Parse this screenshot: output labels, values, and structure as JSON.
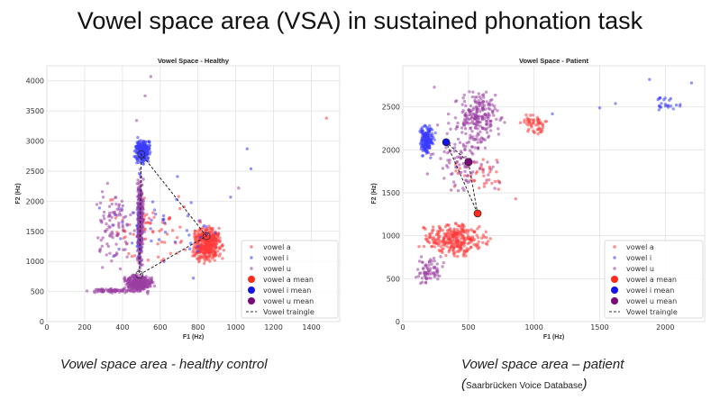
{
  "slide": {
    "title": "Vowel space area (VSA) in sustained phonation task",
    "caption_left": "Vowel space area - healthy control",
    "caption_right": "Vowel space area – patient",
    "caption_right_source": "Saarbrücken Voice Database"
  },
  "colors": {
    "a": "#ff3b3b",
    "i": "#3d3dff",
    "u": "#9b3ea3",
    "a_mean": "#ff2a1a",
    "i_mean": "#1414e6",
    "u_mean": "#7a0a7a"
  },
  "chart_data": [
    {
      "type": "scatter",
      "title": "Vowel Space - Healthy",
      "xlabel": "F1 (Hz)",
      "ylabel": "F2 (Hz)",
      "xlim": [
        0,
        1550
      ],
      "ylim": [
        0,
        4250
      ],
      "xticks": [
        0,
        200,
        400,
        600,
        800,
        1000,
        1200,
        1400
      ],
      "yticks": [
        0,
        500,
        1000,
        1500,
        2000,
        2500,
        3000,
        3500,
        4000
      ],
      "grid": true,
      "legend_position": "lower-right",
      "legend": [
        "vowel a",
        "vowel i",
        "vowel u",
        "vowel a mean",
        "vowel i mean",
        "vowel u mean",
        "Vowel traingle"
      ],
      "means": {
        "a": [
          845,
          1420
        ],
        "i": [
          500,
          2780
        ],
        "u": [
          490,
          780
        ]
      },
      "clusters": [
        {
          "series": "a",
          "n": 420,
          "f1": [
            750,
            950
          ],
          "f2": [
            900,
            1650
          ]
        },
        {
          "series": "a",
          "n": 70,
          "f1": [
            200,
            950
          ],
          "f2": [
            800,
            2300
          ]
        },
        {
          "series": "i",
          "n": 260,
          "f1": [
            450,
            560
          ],
          "f2": [
            2580,
            3100
          ]
        },
        {
          "series": "i",
          "n": 120,
          "f1": [
            470,
            510
          ],
          "f2": [
            700,
            2600
          ]
        },
        {
          "series": "i",
          "n": 45,
          "f1": [
            140,
            1080
          ],
          "f2": [
            480,
            2900
          ]
        },
        {
          "series": "u",
          "n": 260,
          "f1": [
            470,
            520
          ],
          "f2": [
            600,
            2700
          ]
        },
        {
          "series": "u",
          "n": 320,
          "f1": [
            390,
            580
          ],
          "f2": [
            450,
            820
          ]
        },
        {
          "series": "u",
          "n": 60,
          "f1": [
            200,
            480
          ],
          "f2": [
            470,
            560
          ]
        },
        {
          "series": "u",
          "n": 90,
          "f1": [
            220,
            480
          ],
          "f2": [
            700,
            2600
          ]
        }
      ],
      "outliers": [
        {
          "series": "a",
          "f1": 1480,
          "f2": 3380
        },
        {
          "series": "u",
          "f1": 550,
          "f2": 4070
        },
        {
          "series": "u",
          "f1": 520,
          "f2": 3750
        },
        {
          "series": "u",
          "f1": 475,
          "f2": 3340
        },
        {
          "series": "i",
          "f1": 1060,
          "f2": 2870
        },
        {
          "series": "i",
          "f1": 1080,
          "f2": 2540
        },
        {
          "series": "u",
          "f1": 1015,
          "f2": 2220
        }
      ]
    },
    {
      "type": "scatter",
      "title": "Vowel Space - Patient",
      "xlabel": "F1 (Hz)",
      "ylabel": "F2 (Hz)",
      "xlim": [
        0,
        2300
      ],
      "ylim": [
        0,
        2980
      ],
      "xticks": [
        0,
        500,
        1000,
        1500,
        2000
      ],
      "yticks": [
        0,
        500,
        1000,
        1500,
        2000,
        2500
      ],
      "grid": true,
      "legend_position": "lower-right",
      "legend": [
        "vowel a",
        "vowel i",
        "vowel u",
        "vowel a mean",
        "vowel i mean",
        "vowel u mean",
        "Vowel traingle"
      ],
      "means": {
        "a": [
          570,
          1260
        ],
        "i": [
          330,
          2090
        ],
        "u": [
          500,
          1860
        ]
      },
      "clusters": [
        {
          "series": "i",
          "n": 200,
          "f1": [
            110,
            250
          ],
          "f2": [
            1880,
            2320
          ]
        },
        {
          "series": "i",
          "n": 24,
          "f1": [
            1850,
            2200
          ],
          "f2": [
            2400,
            2650
          ]
        },
        {
          "series": "a",
          "n": 300,
          "f1": [
            90,
            700
          ],
          "f2": [
            720,
            1200
          ]
        },
        {
          "series": "a",
          "n": 55,
          "f1": [
            850,
            1130
          ],
          "f2": [
            2100,
            2500
          ]
        },
        {
          "series": "a",
          "n": 35,
          "f1": [
            300,
            850
          ],
          "f2": [
            1400,
            2050
          ]
        },
        {
          "series": "u",
          "n": 200,
          "f1": [
            350,
            800
          ],
          "f2": [
            2000,
            2800
          ]
        },
        {
          "series": "u",
          "n": 120,
          "f1": [
            150,
            800
          ],
          "f2": [
            1300,
            2600
          ]
        },
        {
          "series": "u",
          "n": 70,
          "f1": [
            80,
            330
          ],
          "f2": [
            350,
            850
          ]
        }
      ],
      "outliers": [
        {
          "series": "i",
          "f1": 1880,
          "f2": 2820
        },
        {
          "series": "i",
          "f1": 2200,
          "f2": 2780
        },
        {
          "series": "i",
          "f1": 1500,
          "f2": 2490
        },
        {
          "series": "i",
          "f1": 1620,
          "f2": 2540
        },
        {
          "series": "i",
          "f1": 1140,
          "f2": 2420
        },
        {
          "series": "u",
          "f1": 240,
          "f2": 2730
        },
        {
          "series": "a",
          "f1": 860,
          "f2": 1430
        }
      ]
    }
  ]
}
